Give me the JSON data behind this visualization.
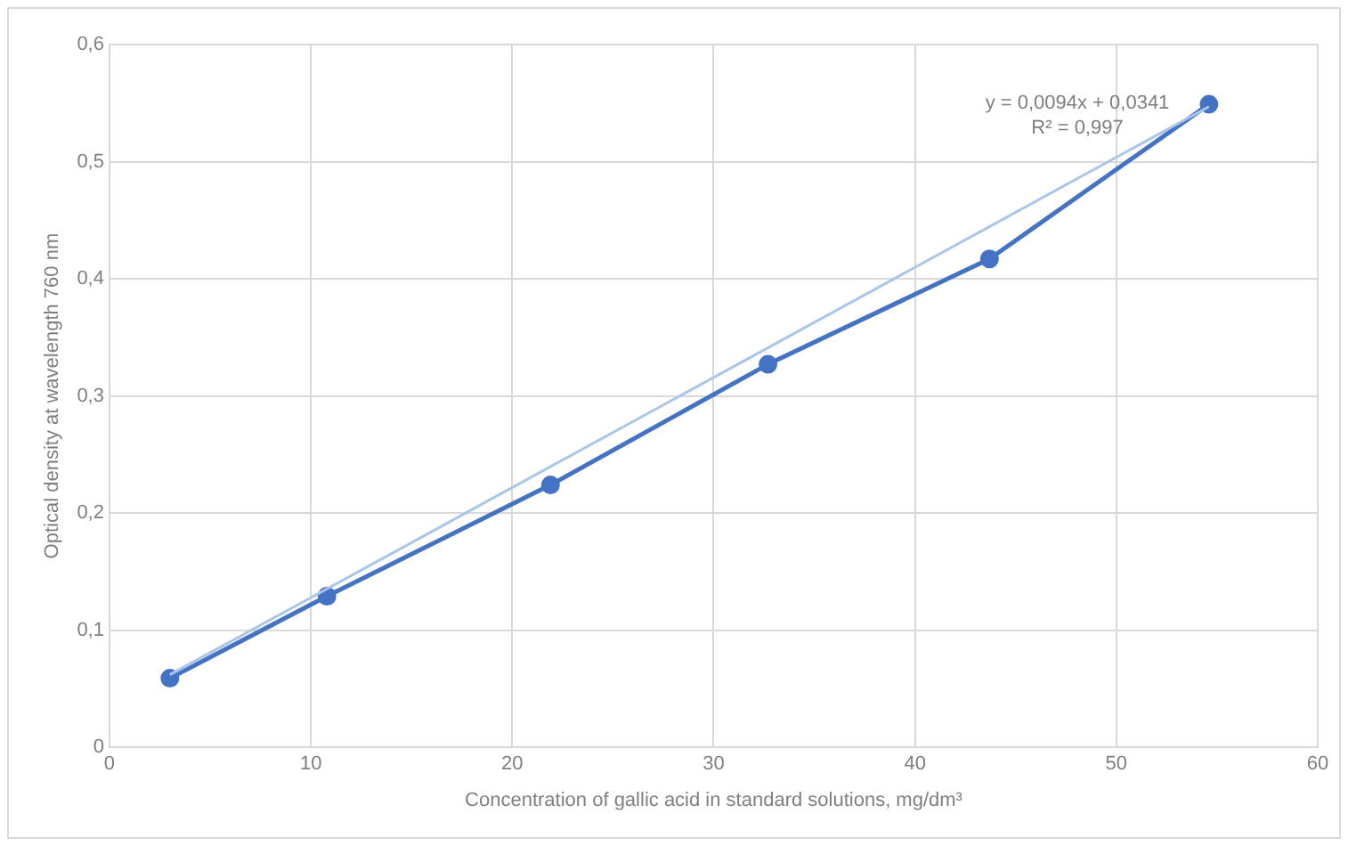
{
  "chart_data": {
    "type": "line",
    "xlabel": "Concentration of gallic acid in standard solutions, mg/dm³",
    "ylabel": "Optical density at wavelength 760 nm",
    "xlim": [
      0,
      60
    ],
    "xticks": [
      0,
      10,
      20,
      30,
      40,
      50,
      60
    ],
    "ylim": [
      0,
      0.6
    ],
    "yticks": [
      0,
      {
        "value": 0.1,
        "label": "0,1"
      },
      {
        "value": 0.2,
        "label": "0,2"
      },
      {
        "value": 0.3,
        "label": "0,3"
      },
      {
        "value": 0.4,
        "label": "0,4"
      },
      {
        "value": 0.5,
        "label": "0,5"
      },
      {
        "value": 0.6,
        "label": "0,6"
      }
    ],
    "series": [
      {
        "color": "#4472c4",
        "marker": "circle",
        "x": [
          3.0,
          10.8,
          21.9,
          32.7,
          43.7,
          54.6
        ],
        "values": [
          0.059,
          0.129,
          0.224,
          0.327,
          0.417,
          0.549
        ]
      },
      {
        "color": "#a9c6ea",
        "marker": "none",
        "x": [
          3.0,
          54.6
        ],
        "values": [
          0.062,
          0.547
        ]
      }
    ],
    "annotations": [
      "y = 0,0094x + 0,0341",
      "R² = 0,997"
    ],
    "grid": true,
    "legend": false
  }
}
